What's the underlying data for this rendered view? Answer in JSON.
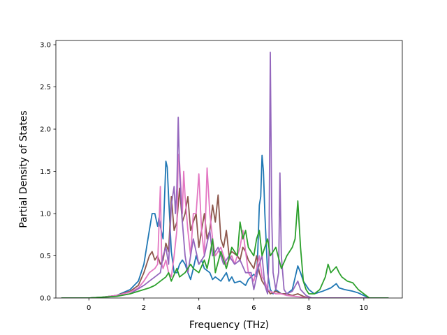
{
  "chart_data": {
    "type": "line",
    "title": "",
    "xlabel": "Frequency (THz)",
    "ylabel": "Partial Density of States",
    "xlim": [
      -1.2,
      11.4
    ],
    "ylim": [
      0.0,
      3.05
    ],
    "xticks": [
      0,
      2,
      4,
      6,
      8,
      10
    ],
    "xtick_labels": [
      "0",
      "2",
      "4",
      "6",
      "8",
      "10"
    ],
    "yticks": [
      0.0,
      0.5,
      1.0,
      1.5,
      2.0,
      2.5,
      3.0
    ],
    "ytick_labels": [
      "0.0",
      "0.5",
      "1.0",
      "1.5",
      "2.0",
      "2.5",
      "3.0"
    ],
    "grid": false,
    "legend": "none",
    "series": [
      {
        "color": "#1f77b4",
        "points": [
          [
            -1.0,
            0
          ],
          [
            0,
            0
          ],
          [
            0.5,
            0.01
          ],
          [
            1.0,
            0.03
          ],
          [
            1.5,
            0.1
          ],
          [
            1.8,
            0.2
          ],
          [
            2.0,
            0.4
          ],
          [
            2.1,
            0.6
          ],
          [
            2.2,
            0.8
          ],
          [
            2.3,
            1.0
          ],
          [
            2.4,
            1.0
          ],
          [
            2.5,
            0.85
          ],
          [
            2.55,
            0.95
          ],
          [
            2.6,
            0.85
          ],
          [
            2.7,
            0.7
          ],
          [
            2.8,
            1.62
          ],
          [
            2.85,
            1.55
          ],
          [
            2.9,
            1.2
          ],
          [
            3.0,
            0.55
          ],
          [
            3.1,
            0.3
          ],
          [
            3.2,
            0.3
          ],
          [
            3.3,
            0.4
          ],
          [
            3.4,
            0.45
          ],
          [
            3.5,
            0.4
          ],
          [
            3.6,
            0.3
          ],
          [
            3.7,
            0.22
          ],
          [
            3.8,
            0.35
          ],
          [
            3.9,
            0.5
          ],
          [
            4.0,
            0.4
          ],
          [
            4.1,
            0.45
          ],
          [
            4.2,
            0.35
          ],
          [
            4.4,
            0.3
          ],
          [
            4.5,
            0.22
          ],
          [
            4.6,
            0.25
          ],
          [
            4.8,
            0.2
          ],
          [
            5.0,
            0.3
          ],
          [
            5.1,
            0.2
          ],
          [
            5.2,
            0.25
          ],
          [
            5.3,
            0.18
          ],
          [
            5.5,
            0.2
          ],
          [
            5.7,
            0.15
          ],
          [
            5.8,
            0.22
          ],
          [
            6.0,
            0.28
          ],
          [
            6.1,
            0.25
          ],
          [
            6.15,
            0.6
          ],
          [
            6.2,
            1.1
          ],
          [
            6.25,
            1.2
          ],
          [
            6.3,
            1.69
          ],
          [
            6.35,
            1.5
          ],
          [
            6.4,
            1.0
          ],
          [
            6.5,
            0.3
          ],
          [
            6.6,
            0.1
          ],
          [
            6.7,
            0.05
          ],
          [
            6.8,
            0.1
          ],
          [
            7.0,
            0.05
          ],
          [
            7.2,
            0.05
          ],
          [
            7.4,
            0.1
          ],
          [
            7.6,
            0.38
          ],
          [
            7.7,
            0.3
          ],
          [
            7.8,
            0.2
          ],
          [
            8.0,
            0.1
          ],
          [
            8.2,
            0.05
          ],
          [
            8.5,
            0.08
          ],
          [
            8.8,
            0.12
          ],
          [
            9.0,
            0.17
          ],
          [
            9.1,
            0.12
          ],
          [
            9.3,
            0.1
          ],
          [
            9.6,
            0.08
          ],
          [
            9.8,
            0.06
          ],
          [
            10.0,
            0.03
          ],
          [
            10.2,
            0
          ],
          [
            10.9,
            0
          ]
        ]
      },
      {
        "color": "#8c564b",
        "points": [
          [
            -1.0,
            0
          ],
          [
            0,
            0
          ],
          [
            0.5,
            0.01
          ],
          [
            1.0,
            0.03
          ],
          [
            1.5,
            0.08
          ],
          [
            1.8,
            0.15
          ],
          [
            2.0,
            0.3
          ],
          [
            2.2,
            0.5
          ],
          [
            2.3,
            0.55
          ],
          [
            2.4,
            0.45
          ],
          [
            2.5,
            0.5
          ],
          [
            2.6,
            0.4
          ],
          [
            2.7,
            0.45
          ],
          [
            2.8,
            0.65
          ],
          [
            2.9,
            0.55
          ],
          [
            3.0,
            1.2
          ],
          [
            3.1,
            0.8
          ],
          [
            3.2,
            0.9
          ],
          [
            3.3,
            1.3
          ],
          [
            3.4,
            0.9
          ],
          [
            3.5,
            1.0
          ],
          [
            3.6,
            1.2
          ],
          [
            3.7,
            0.8
          ],
          [
            3.8,
            0.9
          ],
          [
            3.9,
            1.0
          ],
          [
            4.0,
            0.6
          ],
          [
            4.1,
            0.8
          ],
          [
            4.2,
            1.0
          ],
          [
            4.3,
            0.7
          ],
          [
            4.4,
            0.8
          ],
          [
            4.5,
            1.1
          ],
          [
            4.6,
            0.9
          ],
          [
            4.7,
            1.22
          ],
          [
            4.8,
            0.7
          ],
          [
            4.9,
            0.6
          ],
          [
            5.0,
            0.8
          ],
          [
            5.1,
            0.5
          ],
          [
            5.2,
            0.55
          ],
          [
            5.4,
            0.5
          ],
          [
            5.5,
            0.45
          ],
          [
            5.6,
            0.6
          ],
          [
            5.7,
            0.55
          ],
          [
            5.8,
            0.45
          ],
          [
            6.0,
            0.35
          ],
          [
            6.1,
            0.5
          ],
          [
            6.2,
            0.3
          ],
          [
            6.3,
            0.2
          ],
          [
            6.4,
            0.15
          ],
          [
            6.5,
            0.1
          ],
          [
            6.6,
            0.05
          ],
          [
            6.8,
            0.08
          ],
          [
            7.0,
            0.05
          ],
          [
            7.2,
            0.05
          ],
          [
            7.4,
            0.03
          ],
          [
            7.6,
            0.05
          ],
          [
            7.8,
            0.02
          ],
          [
            8.0,
            0
          ],
          [
            10.9,
            0
          ]
        ]
      },
      {
        "color": "#e377c2",
        "points": [
          [
            -1.0,
            0
          ],
          [
            0,
            0
          ],
          [
            0.5,
            0.01
          ],
          [
            1.0,
            0.03
          ],
          [
            1.5,
            0.07
          ],
          [
            1.8,
            0.12
          ],
          [
            2.0,
            0.2
          ],
          [
            2.2,
            0.3
          ],
          [
            2.4,
            0.35
          ],
          [
            2.5,
            0.4
          ],
          [
            2.6,
            1.32
          ],
          [
            2.65,
            0.4
          ],
          [
            2.7,
            0.35
          ],
          [
            2.8,
            0.45
          ],
          [
            2.9,
            0.3
          ],
          [
            3.0,
            0.25
          ],
          [
            3.1,
            0.5
          ],
          [
            3.2,
            0.8
          ],
          [
            3.25,
            1.7
          ],
          [
            3.3,
            1.6
          ],
          [
            3.4,
            1.0
          ],
          [
            3.45,
            1.5
          ],
          [
            3.5,
            1.2
          ],
          [
            3.6,
            0.8
          ],
          [
            3.7,
            0.5
          ],
          [
            3.8,
            1.0
          ],
          [
            3.9,
            1.0
          ],
          [
            4.0,
            1.47
          ],
          [
            4.1,
            0.8
          ],
          [
            4.2,
            0.5
          ],
          [
            4.3,
            1.54
          ],
          [
            4.4,
            1.0
          ],
          [
            4.5,
            0.7
          ],
          [
            4.6,
            0.5
          ],
          [
            4.8,
            0.6
          ],
          [
            5.0,
            0.4
          ],
          [
            5.2,
            0.5
          ],
          [
            5.3,
            0.4
          ],
          [
            5.5,
            0.6
          ],
          [
            5.6,
            0.8
          ],
          [
            5.8,
            0.3
          ],
          [
            6.0,
            0.2
          ],
          [
            6.1,
            0.35
          ],
          [
            6.2,
            0.5
          ],
          [
            6.3,
            0.25
          ],
          [
            6.4,
            0.2
          ],
          [
            6.5,
            0.1
          ],
          [
            6.6,
            0.08
          ],
          [
            6.8,
            0.05
          ],
          [
            7.0,
            0.05
          ],
          [
            7.2,
            0.03
          ],
          [
            7.5,
            0.02
          ],
          [
            8.0,
            0
          ],
          [
            10.9,
            0
          ]
        ]
      },
      {
        "color": "#9467bd",
        "points": [
          [
            -1.0,
            0
          ],
          [
            0,
            0
          ],
          [
            0.5,
            0.01
          ],
          [
            1.0,
            0.02
          ],
          [
            1.5,
            0.05
          ],
          [
            2.0,
            0.15
          ],
          [
            2.2,
            0.2
          ],
          [
            2.4,
            0.25
          ],
          [
            2.6,
            0.3
          ],
          [
            2.7,
            0.5
          ],
          [
            2.8,
            0.6
          ],
          [
            2.9,
            0.4
          ],
          [
            3.0,
            1.1
          ],
          [
            3.1,
            1.32
          ],
          [
            3.15,
            1.0
          ],
          [
            3.2,
            1.3
          ],
          [
            3.25,
            2.14
          ],
          [
            3.3,
            1.5
          ],
          [
            3.4,
            0.9
          ],
          [
            3.5,
            0.5
          ],
          [
            3.6,
            0.3
          ],
          [
            3.8,
            0.7
          ],
          [
            4.0,
            0.4
          ],
          [
            4.2,
            0.5
          ],
          [
            4.4,
            0.8
          ],
          [
            4.5,
            0.5
          ],
          [
            4.7,
            0.6
          ],
          [
            4.9,
            0.4
          ],
          [
            5.1,
            0.5
          ],
          [
            5.3,
            0.4
          ],
          [
            5.5,
            0.45
          ],
          [
            5.7,
            0.3
          ],
          [
            5.9,
            0.3
          ],
          [
            6.0,
            0.1
          ],
          [
            6.2,
            0.4
          ],
          [
            6.3,
            0.5
          ],
          [
            6.4,
            0.15
          ],
          [
            6.5,
            0.05
          ],
          [
            6.55,
            0.5
          ],
          [
            6.6,
            2.91
          ],
          [
            6.65,
            1.0
          ],
          [
            6.7,
            0.3
          ],
          [
            6.8,
            0.1
          ],
          [
            6.9,
            0.3
          ],
          [
            6.95,
            1.48
          ],
          [
            7.0,
            0.5
          ],
          [
            7.1,
            0.1
          ],
          [
            7.2,
            0.05
          ],
          [
            7.4,
            0.08
          ],
          [
            7.6,
            0.2
          ],
          [
            7.7,
            0.1
          ],
          [
            7.9,
            0.03
          ],
          [
            8.1,
            0
          ],
          [
            10.9,
            0
          ]
        ]
      },
      {
        "color": "#2ca02c",
        "points": [
          [
            -1.0,
            0
          ],
          [
            0,
            0
          ],
          [
            0.5,
            0.01
          ],
          [
            1.0,
            0.02
          ],
          [
            1.5,
            0.05
          ],
          [
            2.0,
            0.1
          ],
          [
            2.2,
            0.12
          ],
          [
            2.4,
            0.15
          ],
          [
            2.6,
            0.2
          ],
          [
            2.8,
            0.25
          ],
          [
            2.9,
            0.3
          ],
          [
            3.0,
            0.2
          ],
          [
            3.2,
            0.35
          ],
          [
            3.3,
            0.25
          ],
          [
            3.5,
            0.3
          ],
          [
            3.7,
            0.4
          ],
          [
            3.8,
            0.35
          ],
          [
            4.0,
            0.3
          ],
          [
            4.2,
            0.45
          ],
          [
            4.3,
            0.35
          ],
          [
            4.4,
            0.5
          ],
          [
            4.5,
            0.7
          ],
          [
            4.6,
            0.3
          ],
          [
            4.8,
            0.55
          ],
          [
            5.0,
            0.35
          ],
          [
            5.2,
            0.6
          ],
          [
            5.4,
            0.5
          ],
          [
            5.5,
            0.9
          ],
          [
            5.6,
            0.7
          ],
          [
            5.7,
            0.8
          ],
          [
            5.8,
            0.6
          ],
          [
            6.0,
            0.5
          ],
          [
            6.1,
            0.7
          ],
          [
            6.2,
            0.8
          ],
          [
            6.3,
            0.5
          ],
          [
            6.5,
            0.7
          ],
          [
            6.6,
            0.5
          ],
          [
            6.8,
            0.6
          ],
          [
            7.0,
            0.35
          ],
          [
            7.2,
            0.5
          ],
          [
            7.4,
            0.6
          ],
          [
            7.5,
            0.7
          ],
          [
            7.6,
            1.15
          ],
          [
            7.7,
            0.6
          ],
          [
            7.8,
            0.2
          ],
          [
            7.9,
            0.1
          ],
          [
            8.0,
            0.05
          ],
          [
            8.2,
            0.05
          ],
          [
            8.4,
            0.1
          ],
          [
            8.6,
            0.25
          ],
          [
            8.7,
            0.4
          ],
          [
            8.8,
            0.3
          ],
          [
            9.0,
            0.37
          ],
          [
            9.1,
            0.3
          ],
          [
            9.2,
            0.25
          ],
          [
            9.4,
            0.2
          ],
          [
            9.6,
            0.18
          ],
          [
            9.8,
            0.1
          ],
          [
            10.0,
            0.05
          ],
          [
            10.2,
            0
          ],
          [
            10.9,
            0
          ]
        ]
      }
    ]
  }
}
